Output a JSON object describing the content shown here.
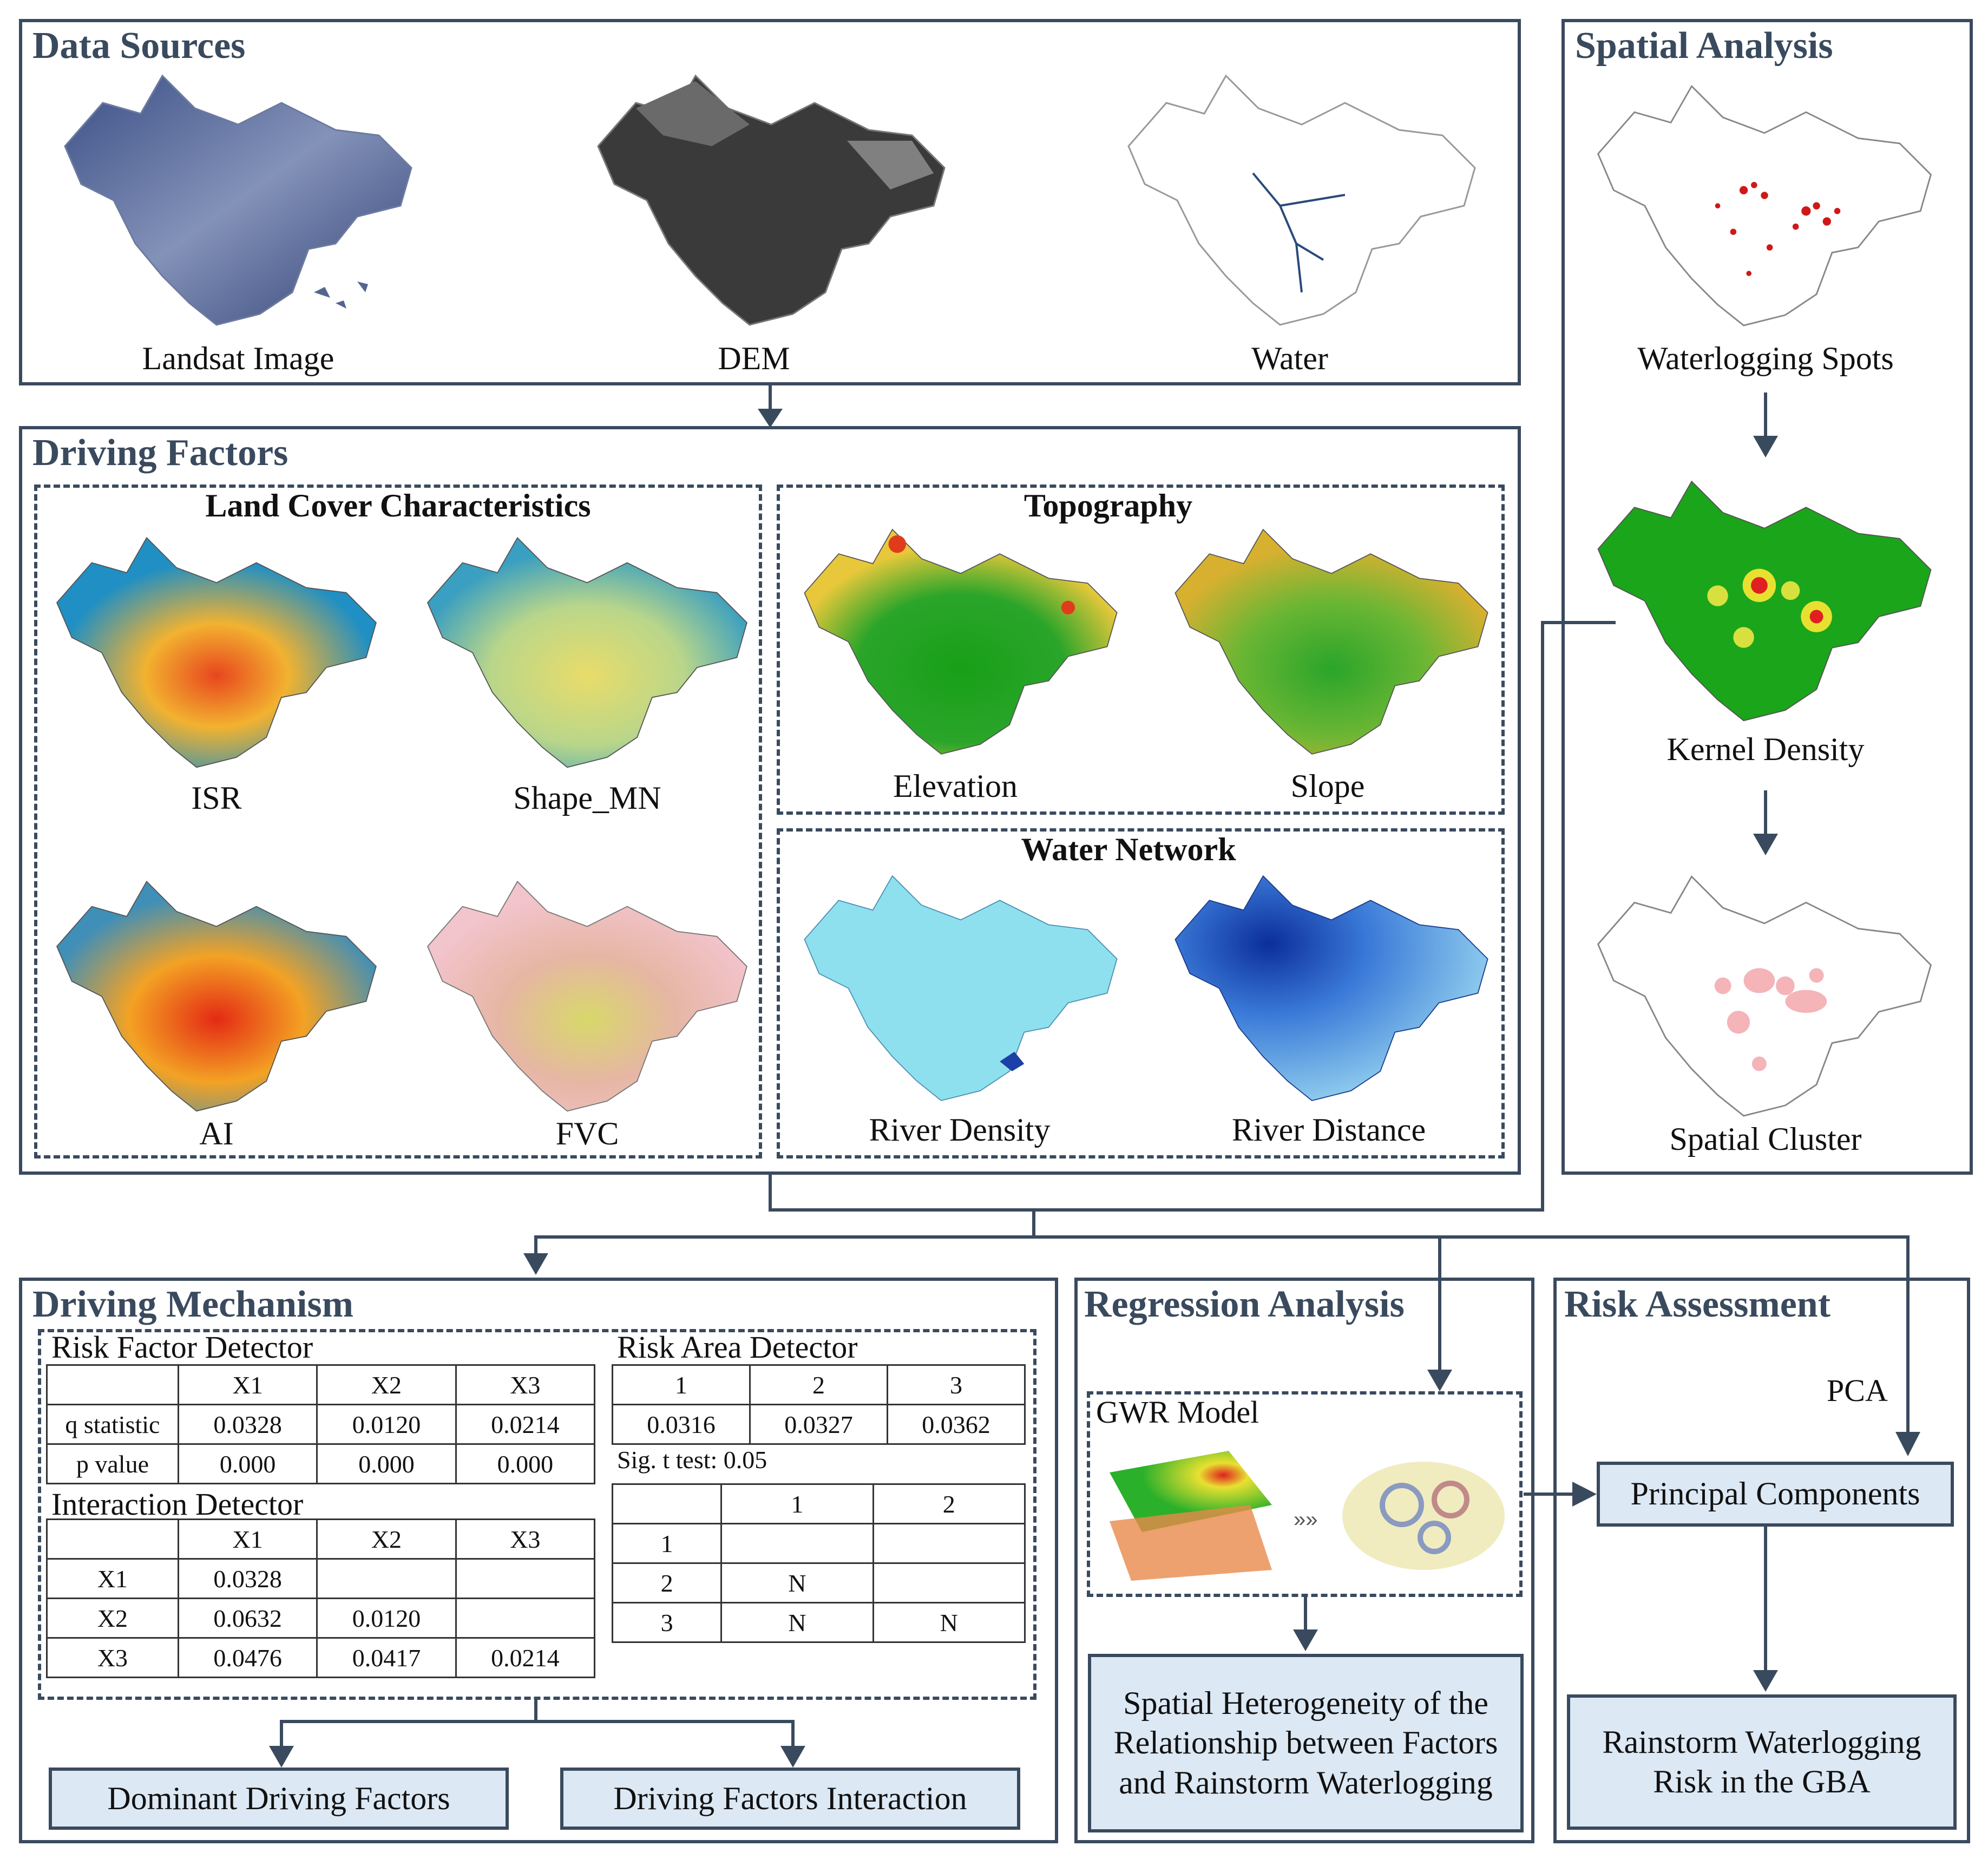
{
  "data_sources": {
    "title": "Data Sources",
    "maps": [
      {
        "label": "Landsat Image",
        "icon": "landsat-image-map"
      },
      {
        "label": "DEM",
        "icon": "dem-map"
      },
      {
        "label": "Water",
        "icon": "water-map"
      }
    ]
  },
  "driving_factors": {
    "title": "Driving Factors",
    "land_cover": {
      "title": "Land Cover Characteristics",
      "maps": [
        "ISR",
        "Shape_MN",
        "AI",
        "FVC"
      ]
    },
    "topography": {
      "title": "Topography",
      "maps": [
        "Elevation",
        "Slope"
      ]
    },
    "water_network": {
      "title": "Water Network",
      "maps": [
        "River Density",
        "River Distance"
      ]
    }
  },
  "spatial_analysis": {
    "title": "Spatial Analysis",
    "maps": [
      "Waterlogging Spots",
      "Kernel Density",
      "Spatial Cluster"
    ]
  },
  "driving_mechanism": {
    "title": "Driving Mechanism",
    "risk_factor_detector": {
      "title": "Risk Factor Detector",
      "header": [
        "",
        "X1",
        "X2",
        "X3"
      ],
      "rows": [
        [
          "q statistic",
          "0.0328",
          "0.0120",
          "0.0214"
        ],
        [
          "p value",
          "0.000",
          "0.000",
          "0.000"
        ]
      ]
    },
    "risk_area_detector": {
      "title": "Risk Area Detector",
      "header": [
        "1",
        "2",
        "3"
      ],
      "values": [
        "0.0316",
        "0.0327",
        "0.0362"
      ],
      "note": "Sig. t test: 0.05",
      "sig_header": [
        "",
        "1",
        "2"
      ],
      "sig_rows": [
        [
          "1",
          "",
          ""
        ],
        [
          "2",
          "N",
          ""
        ],
        [
          "3",
          "N",
          "N"
        ]
      ]
    },
    "interaction_detector": {
      "title": "Interaction Detector",
      "header": [
        "",
        "X1",
        "X2",
        "X3"
      ],
      "rows": [
        [
          "X1",
          "0.0328",
          "",
          ""
        ],
        [
          "X2",
          "0.0632",
          "0.0120",
          ""
        ],
        [
          "X3",
          "0.0476",
          "0.0417",
          "0.0214"
        ]
      ]
    },
    "outputs": [
      "Dominant Driving Factors",
      "Driving Factors Interaction"
    ]
  },
  "regression_analysis": {
    "title": "Regression Analysis",
    "model": "GWR Model",
    "output": "Spatial Heterogeneity of the Relationship between Factors and Rainstorm Waterlogging"
  },
  "risk_assessment": {
    "title": "Risk Assessment",
    "method": "PCA",
    "components": "Principal Components",
    "output": "Rainstorm Waterlogging Risk in the GBA"
  },
  "colors": {
    "border": "#3a4a5e",
    "box_fill": "#dce8f4",
    "accent_red": "#e02020"
  }
}
